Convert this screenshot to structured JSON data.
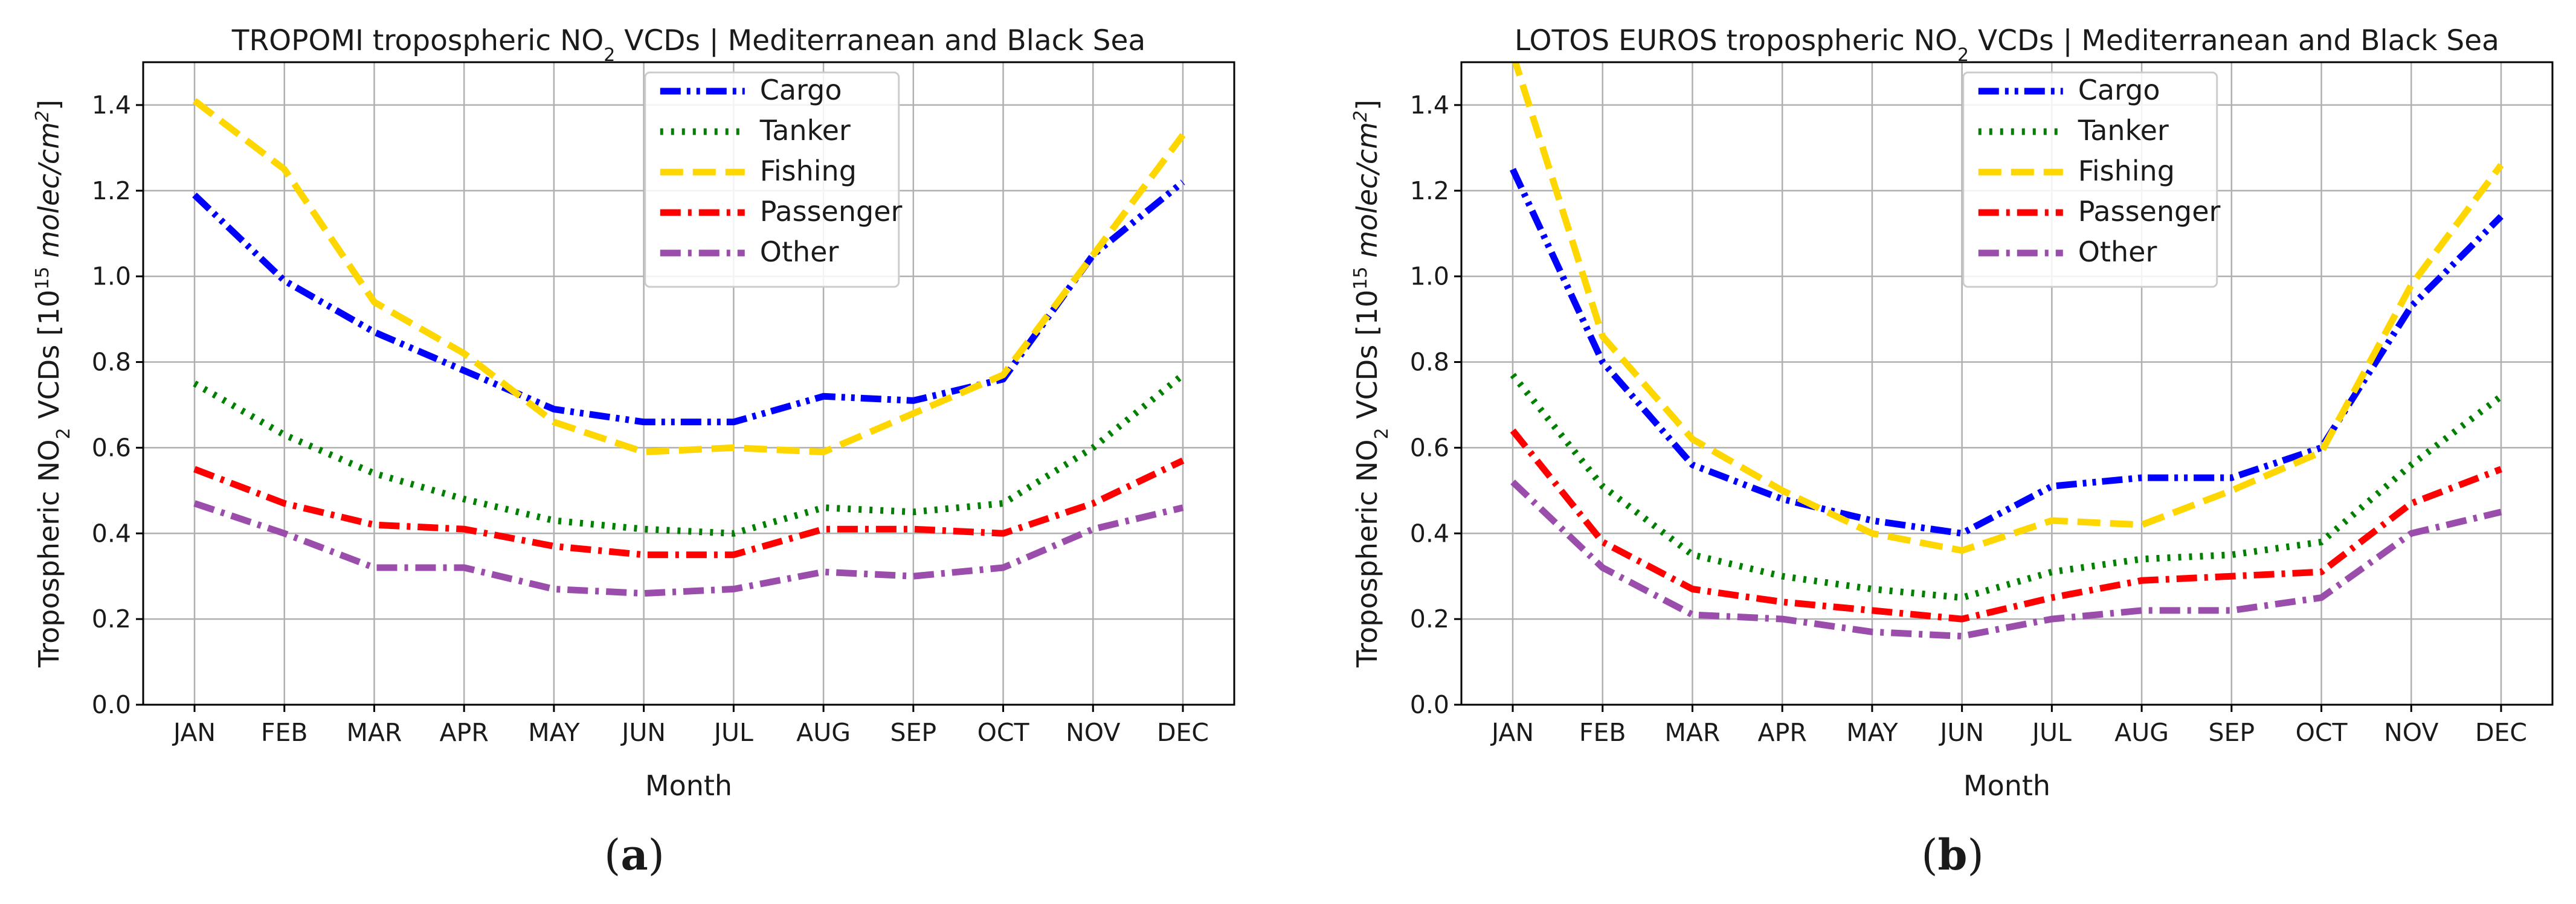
{
  "chart_data": [
    {
      "type": "line",
      "panel_label": "a",
      "title_prefix": "TROPOMI tropospheric NO",
      "title_sub": "2",
      "title_suffix": "  VCDs | Mediterranean and Black Sea",
      "xlabel": "Month",
      "ylabel_prefix": "Tropospheric NO",
      "ylabel_sub": "2",
      "ylabel_mid": " VCDs [10",
      "ylabel_sup": "15",
      "ylabel_unit": " molec/cm",
      "ylabel_unit_sup": "2",
      "ylabel_end": "]",
      "categories": [
        "JAN",
        "FEB",
        "MAR",
        "APR",
        "MAY",
        "JUN",
        "JUL",
        "AUG",
        "SEP",
        "OCT",
        "NOV",
        "DEC"
      ],
      "ylim": [
        0,
        1.5
      ],
      "yticks": [
        0.0,
        0.2,
        0.4,
        0.6,
        0.8,
        1.0,
        1.2,
        1.4
      ],
      "grid": true,
      "legend_position": "top-center",
      "series": [
        {
          "name": "Cargo",
          "color": "#0000ff",
          "style": "dashdotdot",
          "values": [
            1.19,
            0.99,
            0.87,
            0.78,
            0.69,
            0.66,
            0.66,
            0.72,
            0.71,
            0.76,
            1.05,
            1.22
          ]
        },
        {
          "name": "Tanker",
          "color": "#008000",
          "style": "dotted",
          "values": [
            0.75,
            0.63,
            0.54,
            0.48,
            0.43,
            0.41,
            0.4,
            0.46,
            0.45,
            0.47,
            0.6,
            0.77
          ]
        },
        {
          "name": "Fishing",
          "color": "#ffd700",
          "style": "dashed",
          "values": [
            1.41,
            1.25,
            0.94,
            0.82,
            0.66,
            0.59,
            0.6,
            0.59,
            0.68,
            0.77,
            1.05,
            1.33
          ]
        },
        {
          "name": "Passenger",
          "color": "#ff0000",
          "style": "dashdot",
          "values": [
            0.55,
            0.47,
            0.42,
            0.41,
            0.37,
            0.35,
            0.35,
            0.41,
            0.41,
            0.4,
            0.47,
            0.57
          ]
        },
        {
          "name": "Other",
          "color": "#9b4dab",
          "style": "dashdot",
          "values": [
            0.47,
            0.4,
            0.32,
            0.32,
            0.27,
            0.26,
            0.27,
            0.31,
            0.3,
            0.32,
            0.41,
            0.46
          ]
        }
      ]
    },
    {
      "type": "line",
      "panel_label": "b",
      "title_prefix": "LOTOS EUROS tropospheric NO",
      "title_sub": "2",
      "title_suffix": "  VCDs | Mediterranean and Black Sea",
      "xlabel": "Month",
      "ylabel_prefix": "Tropospheric NO",
      "ylabel_sub": "2",
      "ylabel_mid": " VCDs [10",
      "ylabel_sup": "15",
      "ylabel_unit": " molec/cm",
      "ylabel_unit_sup": "2",
      "ylabel_end": "]",
      "categories": [
        "JAN",
        "FEB",
        "MAR",
        "APR",
        "MAY",
        "JUN",
        "JUL",
        "AUG",
        "SEP",
        "OCT",
        "NOV",
        "DEC"
      ],
      "ylim": [
        0,
        1.5
      ],
      "yticks": [
        0.0,
        0.2,
        0.4,
        0.6,
        0.8,
        1.0,
        1.2,
        1.4
      ],
      "grid": true,
      "legend_position": "top-center",
      "series": [
        {
          "name": "Cargo",
          "color": "#0000ff",
          "style": "dashdotdot",
          "values": [
            1.25,
            0.8,
            0.56,
            0.48,
            0.43,
            0.4,
            0.51,
            0.53,
            0.53,
            0.6,
            0.93,
            1.14
          ]
        },
        {
          "name": "Tanker",
          "color": "#008000",
          "style": "dotted",
          "values": [
            0.77,
            0.51,
            0.35,
            0.3,
            0.27,
            0.25,
            0.31,
            0.34,
            0.35,
            0.38,
            0.56,
            0.72
          ]
        },
        {
          "name": "Fishing",
          "color": "#ffd700",
          "style": "dashed",
          "values": [
            1.52,
            0.86,
            0.62,
            0.5,
            0.4,
            0.36,
            0.43,
            0.42,
            0.5,
            0.59,
            0.98,
            1.26
          ]
        },
        {
          "name": "Passenger",
          "color": "#ff0000",
          "style": "dashdot",
          "values": [
            0.64,
            0.38,
            0.27,
            0.24,
            0.22,
            0.2,
            0.25,
            0.29,
            0.3,
            0.31,
            0.47,
            0.55
          ]
        },
        {
          "name": "Other",
          "color": "#9b4dab",
          "style": "dashdot",
          "values": [
            0.52,
            0.32,
            0.21,
            0.2,
            0.17,
            0.16,
            0.2,
            0.22,
            0.22,
            0.25,
            0.4,
            0.45
          ]
        }
      ]
    }
  ]
}
